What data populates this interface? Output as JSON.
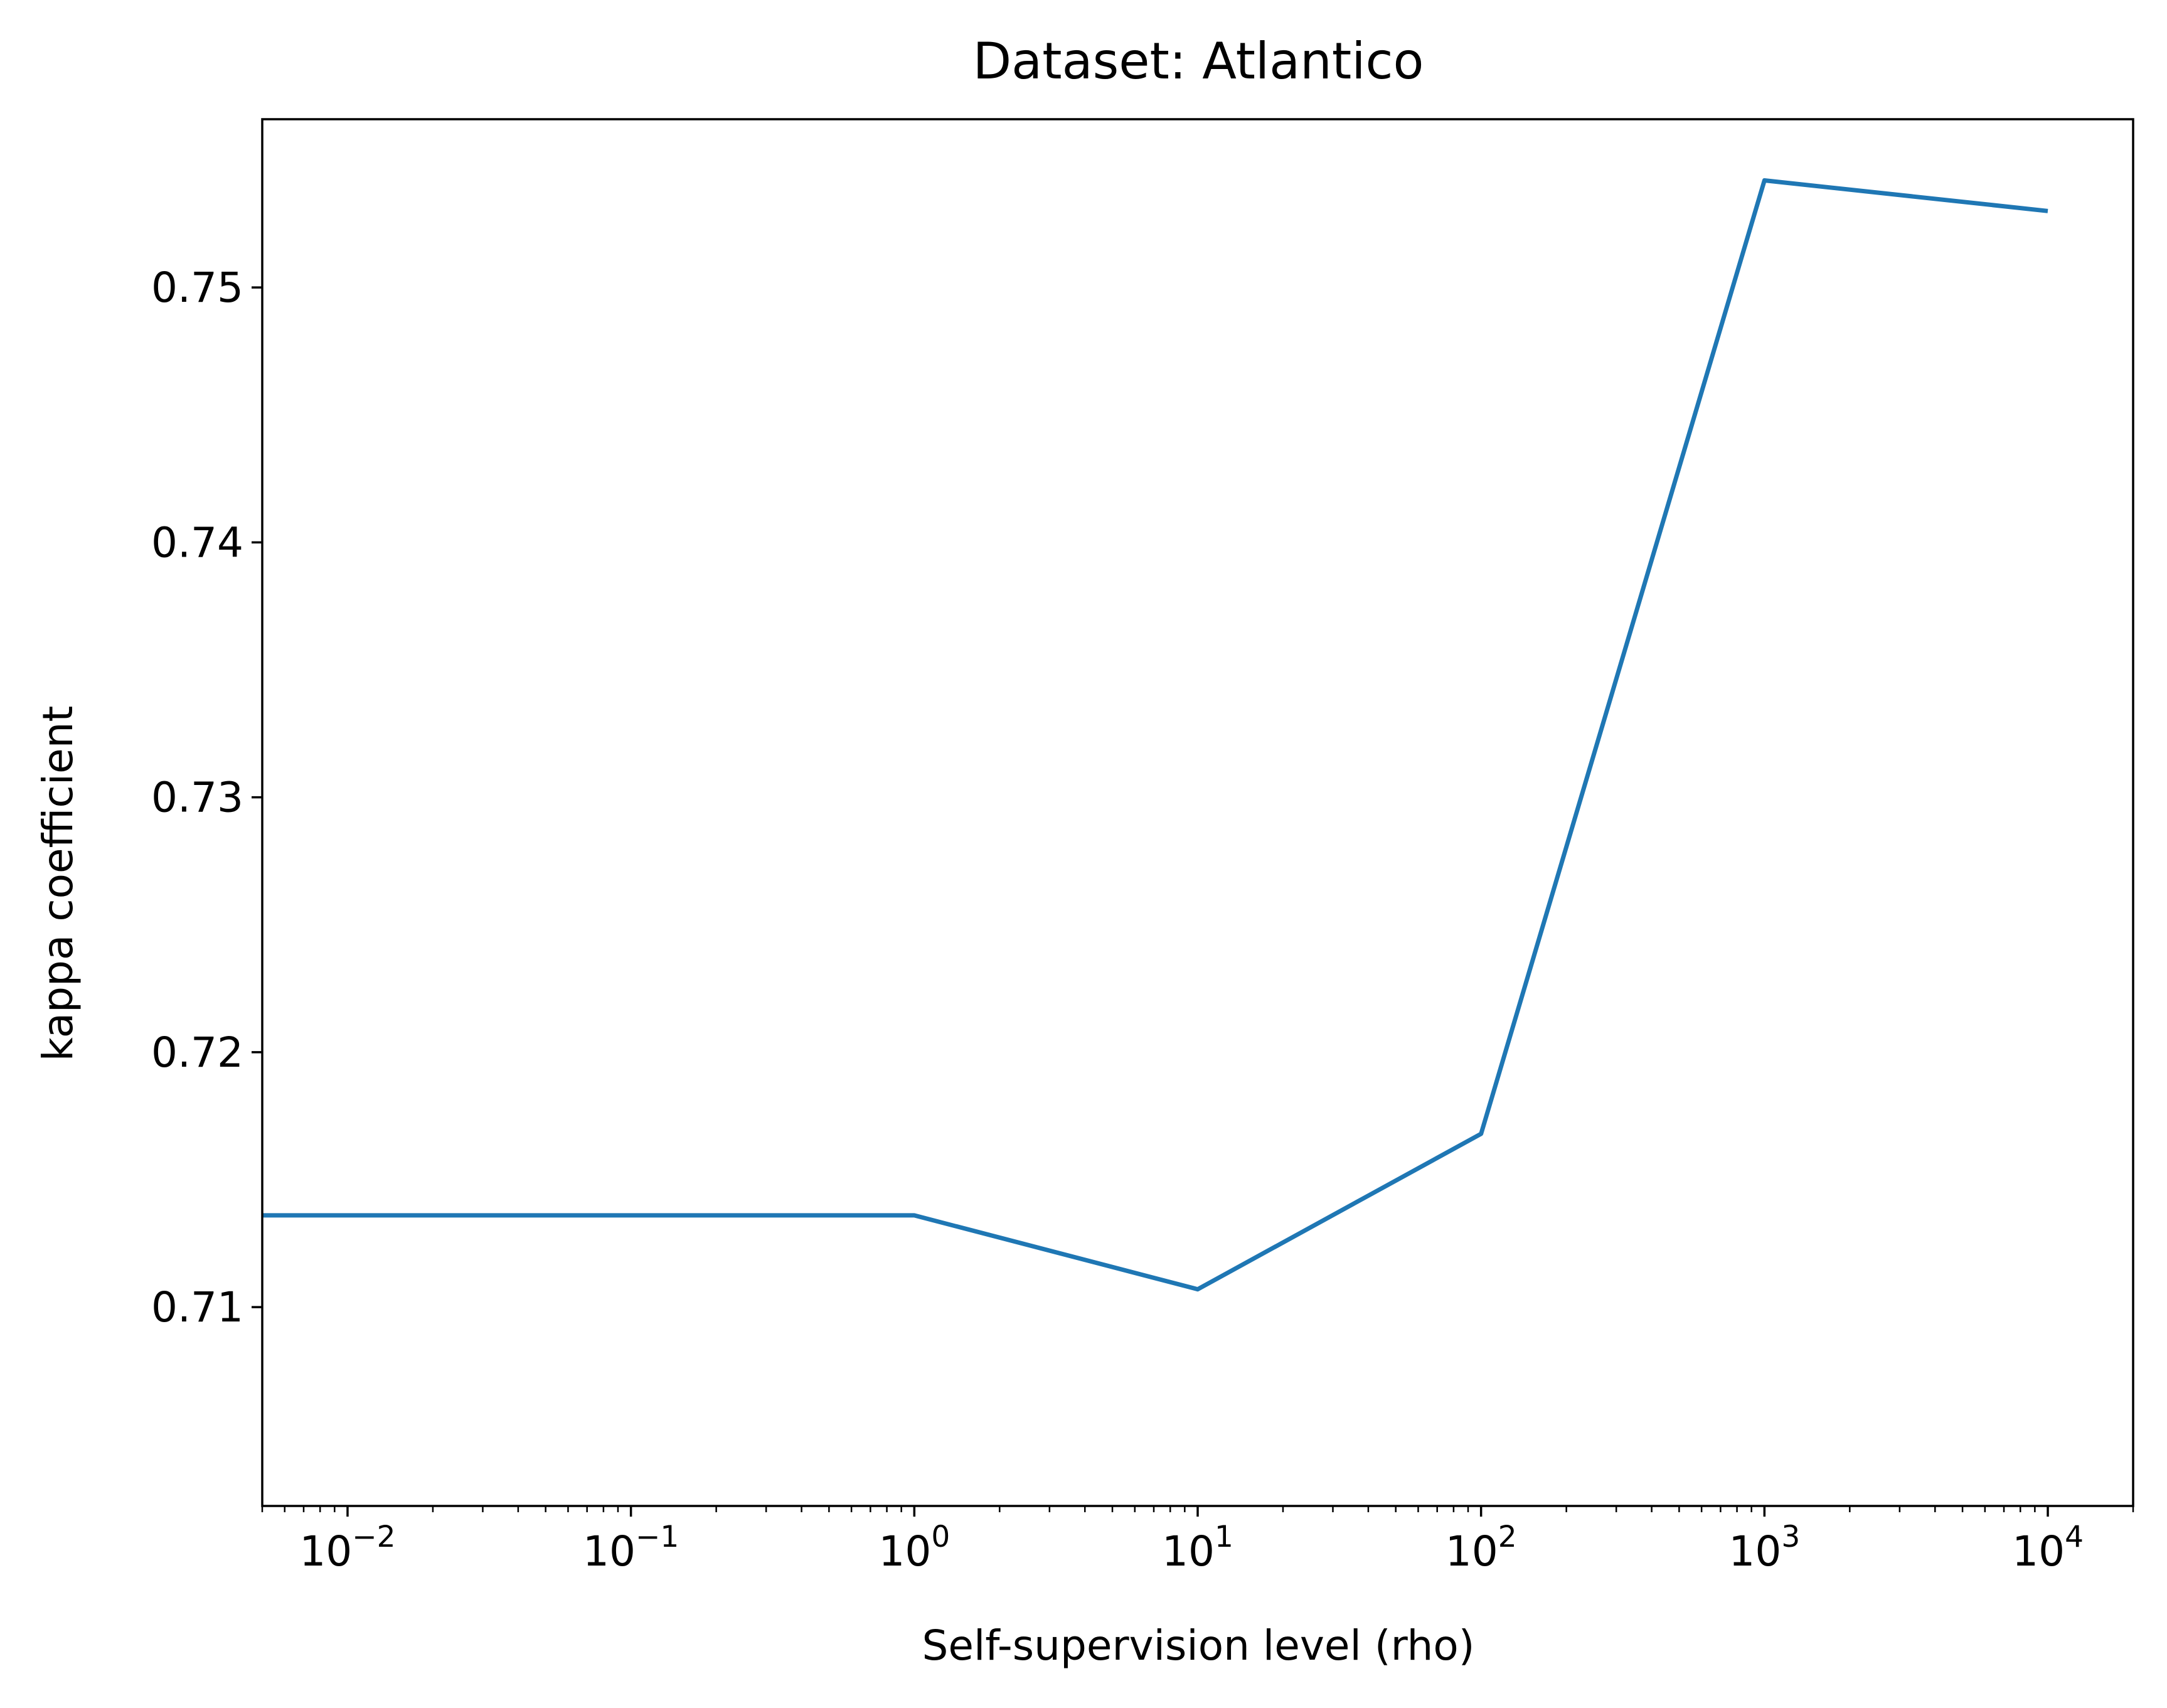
{
  "chart_data": {
    "type": "line",
    "title": "Dataset: Atlantico",
    "xlabel": "Self-supervision level (rho)",
    "ylabel": "kappa coefficient",
    "xscale": "log",
    "xlim": [
      0.005,
      20000
    ],
    "ylim": [
      0.7022,
      0.7566
    ],
    "x_ticks": [
      {
        "value": 0.01,
        "base": "10",
        "exp": "−2"
      },
      {
        "value": 0.1,
        "base": "10",
        "exp": "−1"
      },
      {
        "value": 1,
        "base": "10",
        "exp": "0"
      },
      {
        "value": 10,
        "base": "10",
        "exp": "1"
      },
      {
        "value": 100,
        "base": "10",
        "exp": "2"
      },
      {
        "value": 1000,
        "base": "10",
        "exp": "3"
      },
      {
        "value": 10000,
        "base": "10",
        "exp": "4"
      }
    ],
    "y_ticks": [
      {
        "value": 0.71,
        "label": "0.71"
      },
      {
        "value": 0.72,
        "label": "0.72"
      },
      {
        "value": 0.73,
        "label": "0.73"
      },
      {
        "value": 0.74,
        "label": "0.74"
      },
      {
        "value": 0.75,
        "label": "0.75"
      }
    ],
    "grid": false,
    "series": [
      {
        "color": "#1f77b4",
        "x": [
          0.005,
          0.01,
          0.1,
          1,
          10,
          100,
          1000,
          10000
        ],
        "y": [
          0.7136,
          0.7136,
          0.7136,
          0.7136,
          0.7107,
          0.7168,
          0.7542,
          0.753
        ]
      }
    ]
  }
}
